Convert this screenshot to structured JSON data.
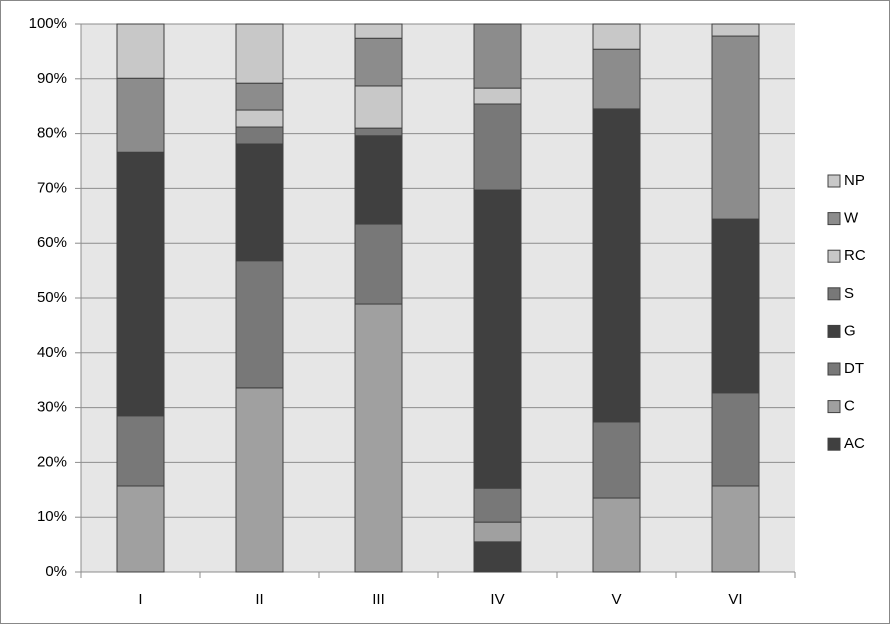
{
  "chart_data": {
    "type": "stacked_bar",
    "categories": [
      "I",
      "II",
      "III",
      "IV",
      "V",
      "VI"
    ],
    "series": [
      {
        "name": "AC",
        "color": "#404040",
        "values": [
          0,
          0,
          0,
          5.5,
          0,
          0
        ]
      },
      {
        "name": "C",
        "color": "#a0a0a0",
        "values": [
          15.7,
          33.6,
          48.9,
          3.6,
          13.5,
          15.7
        ]
      },
      {
        "name": "DT",
        "color": "#787878",
        "values": [
          12.8,
          23.2,
          14.6,
          6.2,
          13.9,
          17.0
        ]
      },
      {
        "name": "G",
        "color": "#404040",
        "values": [
          48.1,
          21.3,
          16.1,
          54.4,
          57.1,
          31.7
        ]
      },
      {
        "name": "S",
        "color": "#787878",
        "values": [
          0,
          3.1,
          1.4,
          15.7,
          0,
          0
        ]
      },
      {
        "name": "RC",
        "color": "#c8c8c8",
        "values": [
          0,
          3.1,
          7.7,
          2.9,
          0,
          0
        ]
      },
      {
        "name": "W",
        "color": "#8c8c8c",
        "values": [
          13.5,
          4.9,
          8.7,
          11.7,
          10.9,
          33.4
        ]
      },
      {
        "name": "NP",
        "color": "#c8c8c8",
        "values": [
          9.9,
          10.8,
          2.6,
          0,
          4.6,
          2.2
        ]
      }
    ],
    "ylim": [
      0,
      100
    ],
    "yticks": [
      {
        "value": 0,
        "label": "0%"
      },
      {
        "value": 10,
        "label": "10%"
      },
      {
        "value": 20,
        "label": "20%"
      },
      {
        "value": 30,
        "label": "30%"
      },
      {
        "value": 40,
        "label": "40%"
      },
      {
        "value": 50,
        "label": "50%"
      },
      {
        "value": 60,
        "label": "60%"
      },
      {
        "value": 70,
        "label": "70%"
      },
      {
        "value": 80,
        "label": "80%"
      },
      {
        "value": 90,
        "label": "90%"
      },
      {
        "value": 100,
        "label": "100%"
      }
    ],
    "grid": true,
    "legend": "right"
  }
}
